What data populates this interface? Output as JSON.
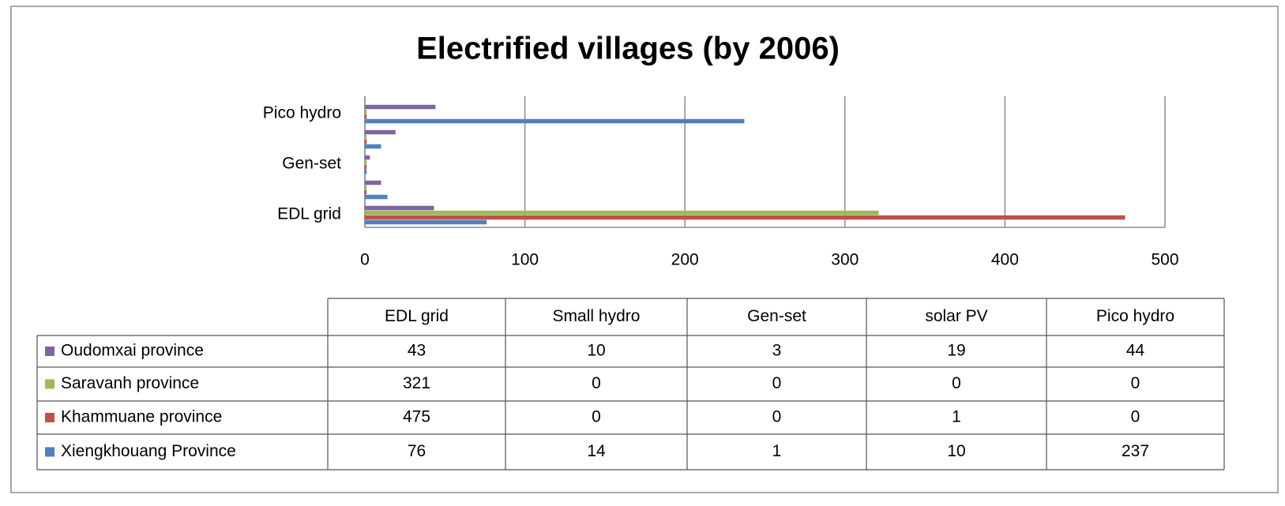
{
  "chart_data": {
    "type": "bar",
    "orientation": "horizontal",
    "title": "Electrified villages (by 2006)",
    "categories": [
      "EDL grid",
      "Small hydro",
      "Gen-set",
      "solar PV",
      "Pico hydro"
    ],
    "series": [
      {
        "name": "Xiengkhouang Province",
        "color": "#4f81bd",
        "values": [
          76,
          14,
          1,
          10,
          237
        ]
      },
      {
        "name": "Khammuane province",
        "color": "#c0504d",
        "values": [
          475,
          0,
          0,
          1,
          0
        ]
      },
      {
        "name": "Saravanh province",
        "color": "#9bbb59",
        "values": [
          321,
          0,
          0,
          0,
          0
        ]
      },
      {
        "name": "Oudomxai province",
        "color": "#8064a2",
        "values": [
          43,
          10,
          3,
          19,
          44
        ]
      }
    ],
    "xlim": [
      0,
      500
    ],
    "xticks": [
      0,
      100,
      200,
      300,
      400,
      500
    ],
    "grid": true,
    "data_table": true
  }
}
